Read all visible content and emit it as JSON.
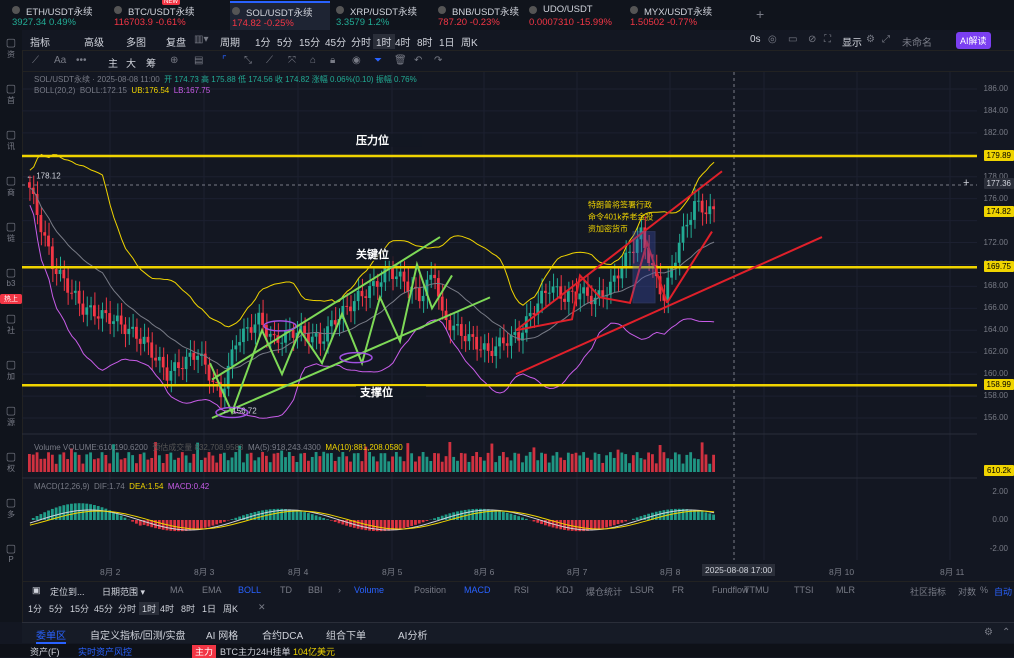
{
  "tabs": [
    {
      "name": "ETH/USDT永续",
      "price": "3927.34",
      "change": "0.49%",
      "color": "#22ab94"
    },
    {
      "name": "BTC/USDT永续",
      "price": "116703.9",
      "change": "-0.61%",
      "color": "#f23645",
      "badge": "NEW"
    },
    {
      "name": "SOL/USDT永续",
      "price": "174.82",
      "change": "-0.25%",
      "color": "#f23645"
    },
    {
      "name": "XRP/USDT永续",
      "price": "3.3579",
      "change": "1.2%",
      "color": "#22ab94"
    },
    {
      "name": "BNB/USDT永续",
      "price": "787.20",
      "change": "-0.23%",
      "color": "#f23645"
    },
    {
      "name": "UDO/USDT",
      "price": "0.0007310",
      "change": "-15.99%",
      "color": "#f23645"
    },
    {
      "name": "MYX/USDT永续",
      "price": "1.50502",
      "change": "-0.77%",
      "color": "#f23645"
    }
  ],
  "toolbar": {
    "indicators": "指标",
    "advanced": "高级",
    "multi": "多图",
    "replay": "复盘",
    "period": "周期",
    "intervals": [
      "1分",
      "5分",
      "15分",
      "45分",
      "分时",
      "1时",
      "4时",
      "8时",
      "1日",
      "周K"
    ],
    "active_interval": "1时",
    "right_0s": "0s",
    "display": "显示",
    "unnamed": "未命名",
    "ai_btn": "AI解读"
  },
  "toolbar2": {
    "items": [
      "主",
      "大",
      "筹"
    ]
  },
  "leftbar": {
    "items": [
      "资",
      "首",
      "讯",
      "商",
      "链",
      "b3",
      "社",
      "加",
      "源",
      "权",
      "多",
      "P"
    ],
    "hot": "热上"
  },
  "chart": {
    "symbol_line": "SOL/USDT永续 · 2025-08-08 11:00",
    "ohlc": "开 174.73  高 175.88  低 174.56  收 174.82  涨幅 0.06%(0.10)  振幅 0.76%",
    "boll": "BOLL(20,2)",
    "boll_mid": "BOLL:172.15",
    "boll_ub": "UB:176.54",
    "boll_lb": "LB:167.75",
    "resistance_label": "压力位",
    "key_label": "关键位",
    "support_label": "支撑位",
    "news_text": [
      "特朗普将签署行政",
      "命令401k养老金投",
      "资加密货币"
    ],
    "high_mark": "← 178.12",
    "low_mark": "← 156.72",
    "volume_legend": "Volume  VOLUME:610,190.6200",
    "volume_ma5": "MA(5):918,243.4300",
    "volume_ma10": "MA(10):881,208.0580",
    "volume_extra": "预估成交量 832,708.9583",
    "macd_legend": "MACD(12,26,9)",
    "macd_dif": "DIF:1.74",
    "macd_dea": "DEA:1.54",
    "macd_val": "MACD:0.42"
  },
  "yaxis": {
    "labels": [
      "186.00",
      "184.00",
      "182.00",
      "180.00",
      "178.00",
      "176.00",
      "172.00",
      "170.00",
      "168.00",
      "166.00",
      "164.00",
      "162.00",
      "160.00",
      "158.00",
      "156.00"
    ],
    "badges": [
      {
        "v": "179.89",
        "c": "#f0d400",
        "t": "#000"
      },
      {
        "v": "177.36",
        "c": "#2a2e39",
        "t": "#d1d4dc"
      },
      {
        "v": "174.82",
        "c": "#f0d400",
        "t": "#000"
      },
      {
        "v": "169.75",
        "c": "#f0d400",
        "t": "#000"
      },
      {
        "v": "158.99",
        "c": "#f0d400",
        "t": "#000"
      },
      {
        "v": "610.2k",
        "c": "#f0d400",
        "t": "#000"
      }
    ],
    "macd_labels": [
      "2.00",
      "0.00",
      "-2.00"
    ]
  },
  "xaxis": {
    "labels": [
      "8月 2",
      "8月 3",
      "8月 4",
      "8月 5",
      "8月 6",
      "8月 7",
      "8月 8",
      "8月 10",
      "8月 11"
    ],
    "cursor": "2025-08-08 17:00"
  },
  "bottombar": {
    "locate": "定位到...",
    "range": "日期范围",
    "items": [
      "MA",
      "EMA",
      "BOLL",
      "TD",
      "BBI",
      "Volume",
      "Position",
      "MACD",
      "RSI",
      "KDJ",
      "爆仓统计",
      "LSUR",
      "FR",
      "Fundflow",
      "TTMU",
      "TTSI",
      "MLR"
    ],
    "right": [
      "社区指标",
      "对数",
      "%",
      "自动"
    ]
  },
  "timeframes": [
    "1分",
    "5分",
    "15分",
    "45分",
    "分时",
    "1时",
    "4时",
    "8时",
    "1日",
    "周K"
  ],
  "panel": {
    "tabs": [
      "委单区",
      "自定义指标/回测/实盘",
      "AI 网格",
      "合约DCA",
      "组合下单",
      "AI分析"
    ]
  },
  "status": {
    "asset": "资产(F)",
    "risk": "实时资产风控",
    "main": "主力",
    "text": "BTC主力24H挂单",
    "amount": "104亿美元"
  }
}
